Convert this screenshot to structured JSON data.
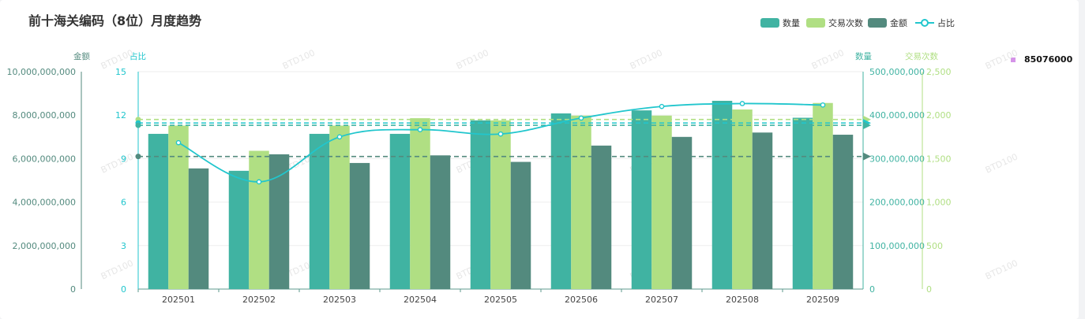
{
  "page": {
    "title": "前十海关编码（8位）月度趋势",
    "side_note": "85076000",
    "watermark": "BTD100"
  },
  "chart_data": {
    "type": "bar",
    "categories": [
      "202501",
      "202502",
      "202503",
      "202504",
      "202505",
      "202506",
      "202507",
      "202508",
      "202509"
    ],
    "series": [
      {
        "name": "数量",
        "kind": "bar",
        "axis": "quantity",
        "color": "#40b3a2",
        "values": [
          357000000,
          272000000,
          357000000,
          357000000,
          388000000,
          404000000,
          411000000,
          433000000,
          394000000
        ]
      },
      {
        "name": "交易次数",
        "kind": "bar",
        "axis": "trades",
        "color": "#b0df83",
        "values": [
          1880,
          1590,
          1880,
          1965,
          1940,
          1995,
          1995,
          2065,
          2140
        ]
      },
      {
        "name": "金额",
        "kind": "bar",
        "axis": "amount",
        "color": "#538a7e",
        "values": [
          5550000000,
          6200000000,
          5800000000,
          6150000000,
          5850000000,
          6600000000,
          7000000000,
          7200000000,
          7100000000
        ]
      },
      {
        "name": "占比",
        "kind": "line",
        "axis": "share",
        "color": "#21c6cd",
        "values": [
          10.1,
          7.4,
          10.5,
          11.0,
          10.7,
          11.8,
          12.6,
          12.8,
          12.7
        ]
      }
    ],
    "axes": {
      "amount": {
        "label": "金额",
        "min": 0,
        "max": 10000000000,
        "ticks": [
          "0",
          "2,000,000,000",
          "4,000,000,000",
          "6,000,000,000",
          "8,000,000,000",
          "10,000,000,000"
        ],
        "color": "#538a7e"
      },
      "share": {
        "label": "占比",
        "min": 0,
        "max": 15,
        "ticks": [
          "0",
          "3",
          "6",
          "9",
          "12",
          "15"
        ],
        "color": "#21c6cd"
      },
      "quantity": {
        "label": "数量",
        "min": 0,
        "max": 500000000,
        "ticks": [
          "0",
          "100,000,000",
          "200,000,000",
          "300,000,000",
          "400,000,000",
          "500,000,000"
        ],
        "color": "#40b3a2"
      },
      "trades": {
        "label": "交易次数",
        "min": 0,
        "max": 2500,
        "ticks": [
          "0",
          "500",
          "1,000",
          "1,500",
          "2,000",
          "2,500"
        ],
        "color": "#b0df83"
      }
    },
    "mark_lines": [
      {
        "axis": "trades",
        "value": 1950,
        "color": "#b0df83"
      },
      {
        "axis": "quantity",
        "value": 382000000,
        "color": "#21c6cd"
      },
      {
        "axis": "share",
        "value": 11.3,
        "color": "#40b3a2"
      },
      {
        "axis": "amount",
        "value": 6100000000,
        "color": "#538a7e"
      }
    ],
    "legend_position": "top-right",
    "grid": true
  }
}
